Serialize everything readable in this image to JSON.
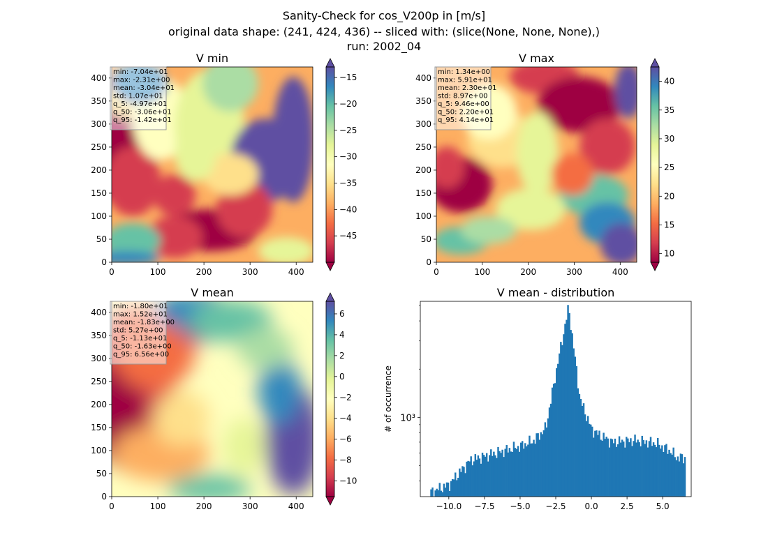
{
  "figure": {
    "title_lines": [
      "Sanity-Check for cos_V200p in [m/s]",
      "original data shape: (241, 424, 436) -- sliced with: (slice(None, None, None),)",
      "run: 2002_04"
    ]
  },
  "chart_data": [
    {
      "type": "heatmap",
      "title": "V min",
      "xlim": [
        0,
        436
      ],
      "ylim": [
        0,
        424
      ],
      "x_ticks": [
        0,
        100,
        200,
        300,
        400
      ],
      "y_ticks": [
        0,
        50,
        100,
        150,
        200,
        250,
        300,
        350,
        400
      ],
      "colormap": "Spectral",
      "colorbar": {
        "range": [
          -50,
          -13
        ],
        "ticks": [
          "−15",
          "−20",
          "−25",
          "−30",
          "−35",
          "−40",
          "−45"
        ],
        "tick_values": [
          -15,
          -20,
          -25,
          -30,
          -35,
          -40,
          -45
        ],
        "extend": "both"
      },
      "stats": [
        "min: -7.04e+01",
        "max: -2.31e+00",
        "mean: -3.04e+01",
        "std: 1.07e+01",
        "q_5: -4.97e+01",
        "q_50: -3.06e+01",
        "q_95: -1.42e+01"
      ]
    },
    {
      "type": "heatmap",
      "title": "V max",
      "xlim": [
        0,
        436
      ],
      "ylim": [
        0,
        424
      ],
      "x_ticks": [
        0,
        100,
        200,
        300,
        400
      ],
      "y_ticks": [
        0,
        50,
        100,
        150,
        200,
        250,
        300,
        350,
        400
      ],
      "colormap": "Spectral",
      "colorbar": {
        "range": [
          8.5,
          42.5
        ],
        "ticks": [
          "10",
          "15",
          "20",
          "25",
          "30",
          "35",
          "40"
        ],
        "tick_values": [
          10,
          15,
          20,
          25,
          30,
          35,
          40
        ],
        "extend": "both"
      },
      "stats": [
        "min: 1.34e+00",
        "max: 5.91e+01",
        "mean: 2.30e+01",
        "std: 8.97e+00",
        "q_5: 9.46e+00",
        "q_50: 2.20e+01",
        "q_95: 4.14e+01"
      ]
    },
    {
      "type": "heatmap",
      "title": "V mean",
      "xlim": [
        0,
        436
      ],
      "ylim": [
        0,
        424
      ],
      "x_ticks": [
        0,
        100,
        200,
        300,
        400
      ],
      "y_ticks": [
        0,
        50,
        100,
        150,
        200,
        250,
        300,
        350,
        400
      ],
      "colormap": "Spectral",
      "colorbar": {
        "range": [
          -11.5,
          7.2
        ],
        "ticks": [
          "6",
          "4",
          "2",
          "0",
          "−2",
          "−4",
          "−6",
          "−8",
          "−10"
        ],
        "tick_values": [
          6,
          4,
          2,
          0,
          -2,
          -4,
          -6,
          -8,
          -10
        ],
        "extend": "both"
      },
      "stats": [
        "min: -1.80e+01",
        "max: 1.52e+01",
        "mean: -1.83e+00",
        "std: 5.27e+00",
        "q_5: -1.13e+01",
        "q_50: -1.63e+00",
        "q_95: 6.56e+00"
      ]
    },
    {
      "type": "bar",
      "title": "V mean - distribution",
      "ylabel": "# of occurrence",
      "yscale": "log",
      "xlim": [
        -12.0,
        7.0
      ],
      "x_ticks": [
        "−10.0",
        "−7.5",
        "−5.0",
        "−2.5",
        "0.0",
        "2.5",
        "5.0"
      ],
      "x_tick_values": [
        -10,
        -7.5,
        -5,
        -2.5,
        0,
        2.5,
        5
      ],
      "y_range": [
        320,
        5300
      ],
      "y_tick_labels": [
        "10³"
      ],
      "y_tick_values": [
        1000
      ],
      "color": "#1f77b4",
      "bin_width": 0.1,
      "bins": {
        "x_start": [
          -11.3,
          -10.0,
          -8.5,
          -5.0,
          -4.0,
          -3.2,
          -2.4,
          -1.6,
          -0.8,
          0.0,
          0.5,
          1.5,
          3.0,
          4.5,
          5.5,
          6.0
        ],
        "counts": [
          340,
          380,
          540,
          660,
          720,
          860,
          2100,
          4900,
          1300,
          850,
          780,
          700,
          720,
          690,
          620,
          560
        ]
      }
    }
  ]
}
